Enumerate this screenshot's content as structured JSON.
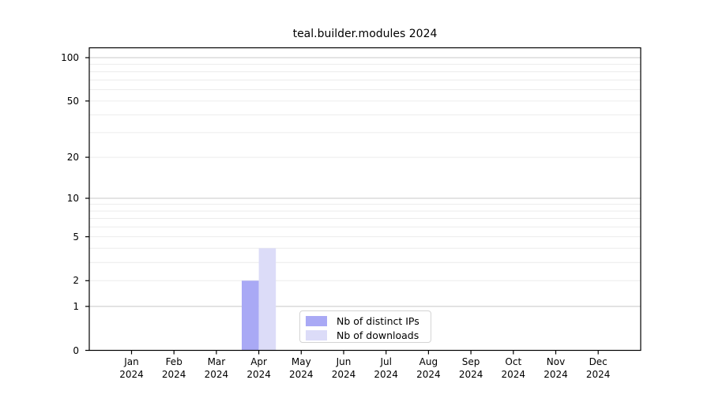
{
  "figure": {
    "background": "#ffffff"
  },
  "chart_data": {
    "type": "bar",
    "title": "teal.builder.modules 2024",
    "categories": [
      "Jan 2024",
      "Feb 2024",
      "Mar 2024",
      "Apr 2024",
      "May 2024",
      "Jun 2024",
      "Jul 2024",
      "Aug 2024",
      "Sep 2024",
      "Oct 2024",
      "Nov 2024",
      "Dec 2024"
    ],
    "series": [
      {
        "name": "Nb of distinct IPs",
        "color": "#a9a9f5",
        "values": [
          0,
          0,
          0,
          2,
          0,
          0,
          0,
          0,
          0,
          0,
          0,
          0
        ]
      },
      {
        "name": "Nb of downloads",
        "color": "#dcdcf8",
        "values": [
          0,
          0,
          0,
          4,
          0,
          0,
          0,
          0,
          0,
          0,
          0,
          0
        ]
      }
    ],
    "xlabel": "",
    "ylabel": "",
    "y_scale": "log10(1+x)",
    "y_ticks": [
      0,
      1,
      2,
      5,
      10,
      20,
      50,
      100
    ],
    "ylim": [
      0,
      117
    ],
    "grid": {
      "major_values": [
        1,
        10,
        100
      ],
      "minor_values": [
        2,
        3,
        4,
        5,
        6,
        7,
        8,
        9,
        20,
        30,
        40,
        50,
        60,
        70,
        80,
        90
      ],
      "major_color": "#c8c8c8",
      "minor_color": "#ececec"
    },
    "legend_position": "inside-bottom-center"
  },
  "legend": {
    "items": [
      {
        "label": "Nb of distinct IPs",
        "color": "#a9a9f5"
      },
      {
        "label": "Nb of downloads",
        "color": "#dcdcf8"
      }
    ]
  }
}
